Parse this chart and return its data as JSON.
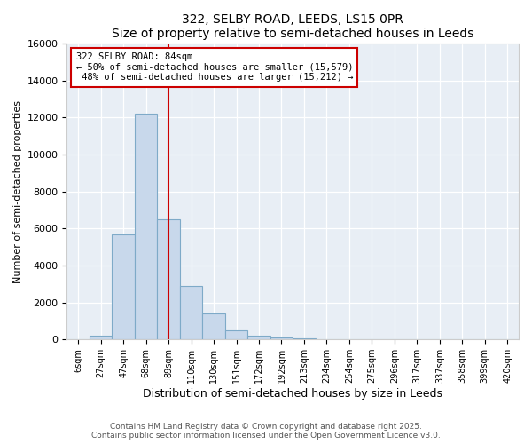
{
  "title": "322, SELBY ROAD, LEEDS, LS15 0PR",
  "subtitle": "Size of property relative to semi-detached houses in Leeds",
  "xlabel": "Distribution of semi-detached houses by size in Leeds",
  "ylabel": "Number of semi-detached properties",
  "bin_labels": [
    "6sqm",
    "27sqm",
    "47sqm",
    "68sqm",
    "89sqm",
    "110sqm",
    "130sqm",
    "151sqm",
    "172sqm",
    "192sqm",
    "213sqm",
    "234sqm",
    "254sqm",
    "275sqm",
    "296sqm",
    "317sqm",
    "337sqm",
    "358sqm",
    "399sqm",
    "420sqm"
  ],
  "bar_values": [
    0,
    200,
    5700,
    12200,
    6500,
    2900,
    1400,
    500,
    200,
    100,
    50,
    20,
    10,
    5,
    2,
    1,
    0,
    0,
    0,
    0
  ],
  "bar_color": "#c8d8eb",
  "bar_edgecolor": "#7eaac8",
  "property_sqm": 84,
  "property_label": "322 SELBY ROAD: 84sqm",
  "pct_smaller": 50,
  "n_smaller": 15579,
  "pct_larger": 48,
  "n_larger": 15212,
  "vline_color": "#cc0000",
  "box_edgecolor": "#cc0000",
  "vline_x_index": 4,
  "ylim": [
    0,
    16000
  ],
  "yticks": [
    0,
    2000,
    4000,
    6000,
    8000,
    10000,
    12000,
    14000,
    16000
  ],
  "bg_color": "#e8eef5",
  "footer_line1": "Contains HM Land Registry data © Crown copyright and database right 2025.",
  "footer_line2": "Contains public sector information licensed under the Open Government Licence v3.0."
}
